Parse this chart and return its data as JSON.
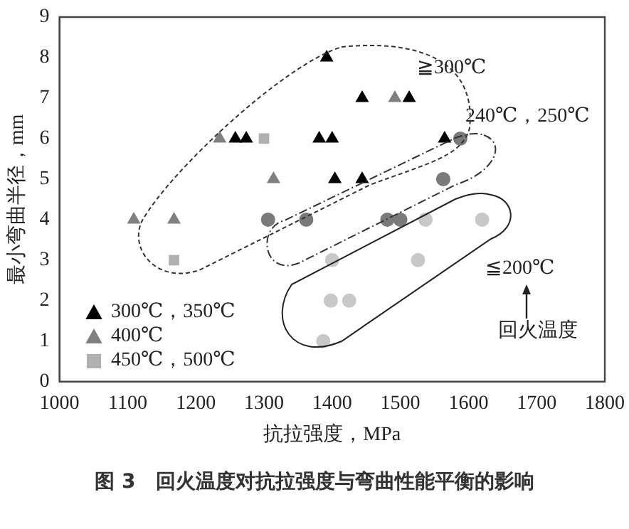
{
  "chart_data": {
    "type": "scatter",
    "title": "图 3　回火温度对抗拉强度与弯曲性能平衡的影响",
    "xlabel": "抗拉强度，MPa",
    "ylabel": "最小弯曲半径，mm",
    "xlim": [
      1000,
      1800
    ],
    "xticks": [
      1000,
      1100,
      1200,
      1300,
      1400,
      1500,
      1600,
      1700,
      1800
    ],
    "ylim": [
      0,
      9
    ],
    "yticks": [
      0,
      1,
      2,
      3,
      4,
      5,
      6,
      7,
      8,
      9
    ],
    "grid": false,
    "legend": "bottom left",
    "series": [
      {
        "name": "300℃，350℃",
        "color": "#000000",
        "marker": "triangle",
        "x": [
          1392,
          1444,
          1513,
          1258,
          1274,
          1381,
          1400,
          1565,
          1404,
          1444
        ],
        "values": [
          8,
          7,
          7,
          6,
          6,
          6,
          6,
          6,
          5,
          5
        ]
      },
      {
        "name": "400℃",
        "color": "#808080",
        "marker": "triangle",
        "x": [
          1492,
          1235,
          1314,
          1109,
          1168
        ],
        "values": [
          7,
          6,
          5,
          4,
          4
        ]
      },
      {
        "name": "450℃，500℃",
        "color": "#b0b0b0",
        "marker": "square",
        "x": [
          1300,
          1168
        ],
        "values": [
          6,
          3
        ]
      },
      {
        "color": "#7a7a7a",
        "marker": "circle",
        "x": [
          1306,
          1362,
          1481,
          1500,
          1563,
          1588
        ],
        "values": [
          4,
          4,
          4,
          4,
          5,
          6
        ]
      },
      {
        "color": "#c8c8c8",
        "marker": "circle",
        "x": [
          1400,
          1398,
          1425,
          1387,
          1537,
          1620,
          1526
        ],
        "values": [
          3,
          2,
          2,
          1,
          4,
          4,
          3
        ]
      }
    ],
    "annotations": [
      "≧300℃",
      "240℃，250℃",
      "≦200℃",
      "回火温度"
    ]
  }
}
